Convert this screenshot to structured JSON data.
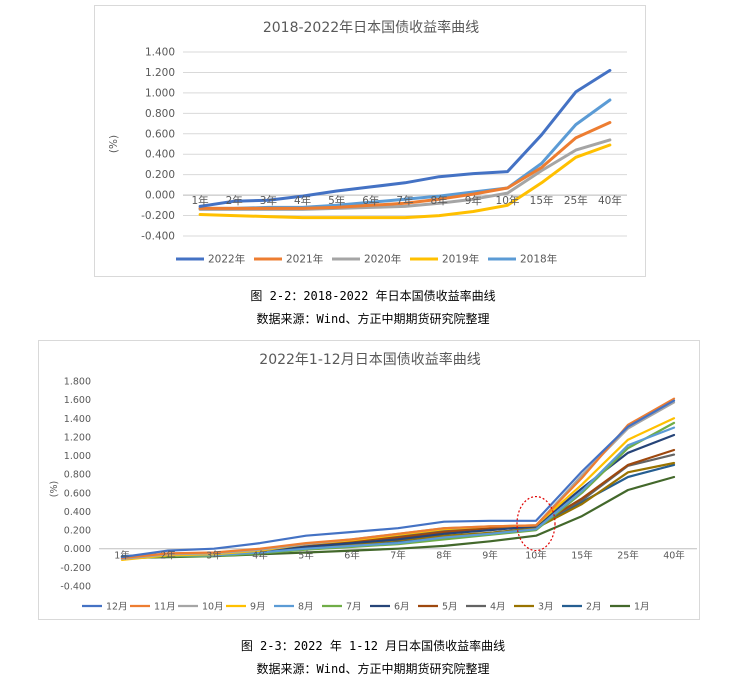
{
  "figure1": {
    "caption": "图 2-2：2018-2022 年日本国债收益率曲线",
    "source": "数据来源：Wind、方正中期期货研究院整理"
  },
  "figure2": {
    "caption": "图 2-3：2022 年 1-12 月日本国债收益率曲线",
    "source": "数据来源：Wind、方正中期期货研究院整理"
  },
  "chart_data": [
    {
      "type": "line",
      "title": "2018-2022年日本国债收益率曲线",
      "ylabel": "(%)",
      "xlabel": "",
      "ylim": [
        -0.4,
        1.4
      ],
      "yticks": [
        "-0.400",
        "-0.200",
        "0.000",
        "0.200",
        "0.400",
        "0.600",
        "0.800",
        "1.000",
        "1.200",
        "1.400"
      ],
      "categories": [
        "1年",
        "2年",
        "3年",
        "4年",
        "5年",
        "6年",
        "7年",
        "8年",
        "9年",
        "10年",
        "15年",
        "25年",
        "40年"
      ],
      "grid": true,
      "legend_position": "bottom",
      "series": [
        {
          "name": "2022年",
          "color": "#4472C4",
          "values": [
            -0.11,
            -0.06,
            -0.05,
            -0.01,
            0.04,
            0.08,
            0.12,
            0.18,
            0.21,
            0.23,
            0.59,
            1.01,
            1.22
          ]
        },
        {
          "name": "2021年",
          "color": "#ED7D31",
          "values": [
            -0.13,
            -0.13,
            -0.13,
            -0.13,
            -0.12,
            -0.1,
            -0.08,
            -0.04,
            0.01,
            0.07,
            0.27,
            0.56,
            0.71
          ]
        },
        {
          "name": "2020年",
          "color": "#A5A5A5",
          "values": [
            -0.14,
            -0.14,
            -0.14,
            -0.14,
            -0.13,
            -0.12,
            -0.11,
            -0.08,
            -0.04,
            0.02,
            0.24,
            0.44,
            0.54
          ]
        },
        {
          "name": "2019年",
          "color": "#FFC000",
          "values": [
            -0.19,
            -0.2,
            -0.21,
            -0.22,
            -0.22,
            -0.22,
            -0.22,
            -0.2,
            -0.16,
            -0.1,
            0.12,
            0.37,
            0.49
          ]
        },
        {
          "name": "2018年",
          "color": "#5B9BD5",
          "values": [
            -0.13,
            -0.13,
            -0.12,
            -0.12,
            -0.1,
            -0.07,
            -0.04,
            -0.01,
            0.03,
            0.07,
            0.31,
            0.69,
            0.93
          ]
        }
      ]
    },
    {
      "type": "line",
      "title": "2022年1-12月日本国债收益率曲线",
      "ylabel": "(%)",
      "xlabel": "",
      "ylim": [
        -0.4,
        1.8
      ],
      "yticks": [
        "-0.400",
        "-0.200",
        "0.000",
        "0.200",
        "0.400",
        "0.600",
        "0.800",
        "1.000",
        "1.200",
        "1.400",
        "1.600",
        "1.800"
      ],
      "categories": [
        "1年",
        "2年",
        "3年",
        "4年",
        "5年",
        "6年",
        "7年",
        "8年",
        "9年",
        "10年",
        "15年",
        "25年",
        "40年"
      ],
      "grid": false,
      "legend_position": "bottom",
      "annotation": "red dotted ellipse around 10年",
      "series": [
        {
          "name": "12月",
          "color": "#4472C4",
          "values": [
            -0.09,
            -0.02,
            0.0,
            0.06,
            0.14,
            0.18,
            0.22,
            0.29,
            0.3,
            0.3,
            0.83,
            1.31,
            1.59
          ]
        },
        {
          "name": "11月",
          "color": "#ED7D31",
          "values": [
            -0.1,
            -0.05,
            -0.04,
            0.0,
            0.06,
            0.1,
            0.16,
            0.22,
            0.24,
            0.25,
            0.76,
            1.33,
            1.61
          ]
        },
        {
          "name": "10月",
          "color": "#A5A5A5",
          "values": [
            -0.11,
            -0.06,
            -0.05,
            -0.01,
            0.05,
            0.1,
            0.16,
            0.22,
            0.24,
            0.25,
            0.79,
            1.29,
            1.57
          ]
        },
        {
          "name": "9月",
          "color": "#FFC000",
          "values": [
            -0.12,
            -0.07,
            -0.06,
            -0.02,
            0.05,
            0.09,
            0.15,
            0.21,
            0.24,
            0.25,
            0.69,
            1.17,
            1.4
          ]
        },
        {
          "name": "8月",
          "color": "#5B9BD5",
          "values": [
            -0.1,
            -0.07,
            -0.07,
            -0.04,
            0.0,
            0.03,
            0.06,
            0.12,
            0.16,
            0.21,
            0.62,
            1.11,
            1.3
          ]
        },
        {
          "name": "7月",
          "color": "#70AD47",
          "values": [
            -0.11,
            -0.08,
            -0.08,
            -0.05,
            -0.01,
            0.02,
            0.05,
            0.1,
            0.15,
            0.2,
            0.6,
            1.08,
            1.35
          ]
        },
        {
          "name": "6月",
          "color": "#264478",
          "values": [
            -0.09,
            -0.07,
            -0.06,
            -0.03,
            0.02,
            0.06,
            0.1,
            0.16,
            0.2,
            0.24,
            0.65,
            1.03,
            1.22
          ]
        },
        {
          "name": "5月",
          "color": "#9E480E",
          "values": [
            -0.1,
            -0.07,
            -0.06,
            -0.03,
            0.03,
            0.08,
            0.12,
            0.18,
            0.22,
            0.24,
            0.54,
            0.9,
            1.06
          ]
        },
        {
          "name": "4月",
          "color": "#636363",
          "values": [
            -0.1,
            -0.06,
            -0.05,
            -0.02,
            0.03,
            0.08,
            0.13,
            0.2,
            0.23,
            0.25,
            0.52,
            0.89,
            1.01
          ]
        },
        {
          "name": "3月",
          "color": "#997300",
          "values": [
            -0.1,
            -0.07,
            -0.06,
            -0.03,
            0.02,
            0.05,
            0.09,
            0.14,
            0.17,
            0.22,
            0.48,
            0.82,
            0.92
          ]
        },
        {
          "name": "2月",
          "color": "#255E91",
          "values": [
            -0.08,
            -0.06,
            -0.05,
            -0.03,
            0.0,
            0.03,
            0.07,
            0.12,
            0.17,
            0.22,
            0.5,
            0.77,
            0.9
          ]
        },
        {
          "name": "1月",
          "color": "#43682B",
          "values": [
            -0.1,
            -0.09,
            -0.08,
            -0.06,
            -0.04,
            -0.02,
            0.0,
            0.03,
            0.08,
            0.14,
            0.35,
            0.63,
            0.77
          ]
        }
      ]
    }
  ]
}
